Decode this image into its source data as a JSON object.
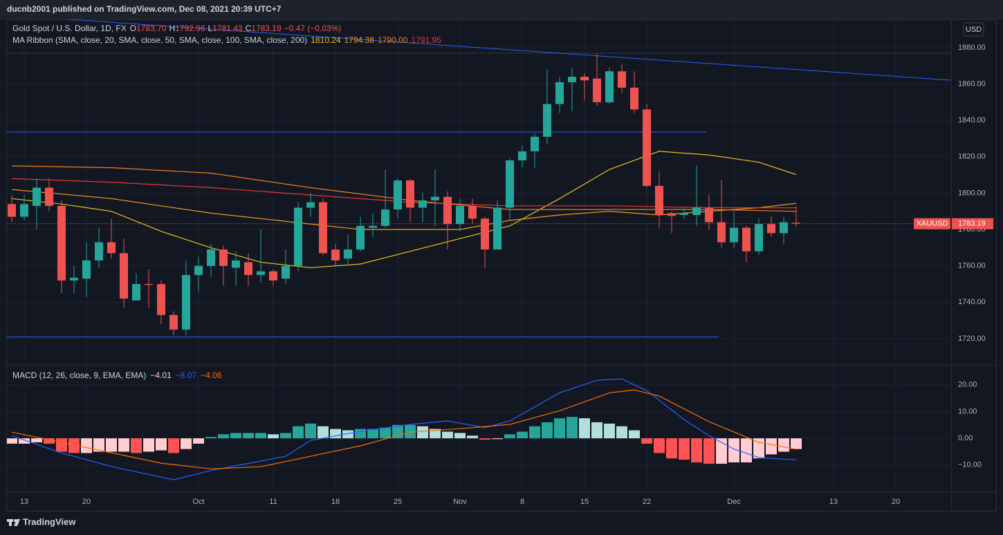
{
  "header": "ducnb2001 published on TradingView.com, Dec 08, 2021 20:39 UTC+7",
  "footer": "TradingView",
  "chart_data": [
    {
      "type": "candlestick",
      "title": "Gold Spot / U.S. Dollar, 1D, FX",
      "ohlc_legend": [
        {
          "key": "O",
          "value": "1783.70"
        },
        {
          "key": "H",
          "value": "1792.96"
        },
        {
          "key": "L",
          "value": "1781.43"
        },
        {
          "key": "C",
          "value": "1783.19"
        }
      ],
      "change": "−0.47 (−0.03%)",
      "currency": "USD",
      "symbol": "XAUUSD",
      "last_price_label": "1783.19",
      "up_color": "#26a69a",
      "down_color": "#ef5350",
      "categories": [
        null,
        "13",
        null,
        null,
        null,
        null,
        "20",
        null,
        null,
        null,
        null,
        null,
        null,
        null,
        null,
        "Oct",
        null,
        null,
        null,
        null,
        null,
        "11",
        null,
        null,
        null,
        null,
        "18",
        null,
        null,
        null,
        null,
        "25",
        null,
        null,
        null,
        null,
        "Nov",
        null,
        null,
        null,
        null,
        "8",
        null,
        null,
        null,
        null,
        "15",
        null,
        null,
        null,
        null,
        "22",
        null,
        null,
        null,
        null,
        null,
        null,
        "Dec",
        null,
        null,
        null,
        null,
        null,
        null,
        null,
        "13",
        null,
        null,
        null,
        null,
        "20"
      ],
      "open": [
        1794,
        1787,
        1793,
        1803,
        1793,
        1752,
        1753,
        1763,
        1773,
        1767,
        1741,
        1750,
        1750,
        1733,
        1725,
        1755,
        1760,
        1769,
        1759,
        1762,
        1755,
        1757,
        1753,
        1760,
        1792,
        1795,
        1769,
        1764,
        1769,
        1781,
        1782,
        1791,
        1807,
        1792,
        1796,
        1798,
        1783,
        1793,
        1786,
        1769,
        1792,
        1818,
        1823,
        1831,
        1849,
        1861,
        1864,
        1863,
        1850,
        1867,
        1858,
        1846,
        1804,
        1789,
        1788,
        1788,
        1792,
        1784,
        1773,
        1781,
        1768,
        1783,
        1778,
        1783.7,
        null,
        null,
        null,
        null,
        null,
        null,
        null,
        null
      ],
      "high": [
        1799,
        1799,
        1808,
        1808,
        1796,
        1760,
        1773,
        1781,
        1786,
        1775,
        1756,
        1758,
        1752,
        1735,
        1763,
        1765,
        1772,
        1771,
        1768,
        1767,
        1780,
        1758,
        1769,
        1795,
        1800,
        1797,
        1772,
        1777,
        1787,
        1789,
        1813,
        1808,
        1808,
        1800,
        1813,
        1801,
        1797,
        1797,
        1787,
        1796,
        1819,
        1826,
        1833,
        1868,
        1864,
        1869,
        1866,
        1877,
        1869,
        1871,
        1867,
        1849,
        1812,
        1790,
        1792,
        1815,
        1799,
        1807,
        1790,
        1782,
        1786,
        1787,
        1787,
        1792.96,
        null,
        null,
        null,
        null,
        null,
        null,
        null,
        null
      ],
      "low": [
        1784,
        1785,
        1780,
        1790,
        1745,
        1745,
        1743,
        1759,
        1764,
        1737,
        1741,
        1737,
        1728,
        1722,
        1722,
        1746,
        1754,
        1749,
        1749,
        1749,
        1751,
        1749,
        1750,
        1757,
        1787,
        1766,
        1760,
        1761,
        1768,
        1776,
        1781,
        1786,
        1784,
        1784,
        1782,
        1769,
        1779,
        1783,
        1759,
        1769,
        1785,
        1814,
        1814,
        1827,
        1844,
        1845,
        1851,
        1848,
        1849,
        1855,
        1844,
        1803,
        1781,
        1778,
        1786,
        1782,
        1780,
        1770,
        1770,
        1762,
        1766,
        1776,
        1772,
        1781.43,
        null,
        null,
        null,
        null,
        null,
        null,
        null,
        null
      ],
      "close": [
        1787,
        1794,
        1803,
        1793,
        1752,
        1753.5,
        1763,
        1773,
        1767,
        1742,
        1750,
        1749.5,
        1733,
        1725,
        1755,
        1760,
        1769,
        1760,
        1763,
        1755,
        1757,
        1752,
        1760,
        1792,
        1795,
        1767,
        1763,
        1769,
        1782,
        1782,
        1791,
        1807,
        1792,
        1796,
        1798,
        1783,
        1793,
        1786,
        1769,
        1792,
        1818,
        1823,
        1831,
        1849,
        1861,
        1864,
        1862,
        1850,
        1867,
        1858,
        1846,
        1804,
        1788,
        1787.5,
        1789,
        1792,
        1784,
        1773,
        1781,
        1768,
        1783,
        1778,
        1784,
        1783.19,
        null,
        null,
        null,
        null,
        null,
        null,
        null,
        null
      ],
      "indicator": "MA Ribbon (SMA, close, 20, SMA, close, 50, SMA, close, 100, SMA, close, 200)",
      "series": [
        {
          "color": "#e8c21c",
          "legend_value": "1810.24",
          "x": [
            0,
            4,
            8,
            12,
            16,
            20,
            24,
            28,
            32,
            36,
            40,
            44,
            48,
            52,
            56,
            60,
            63
          ],
          "values": [
            1797,
            1794,
            1790,
            1779,
            1770,
            1762,
            1759,
            1761,
            1768,
            1775,
            1782,
            1797,
            1813,
            1823,
            1821,
            1817,
            1810.24
          ]
        },
        {
          "color": "#f59f1d",
          "legend_value": "1794.38",
          "x": [
            0,
            8,
            16,
            24,
            28,
            36,
            40,
            44,
            48,
            52,
            56,
            60,
            63
          ],
          "values": [
            1802,
            1797,
            1789,
            1783,
            1780,
            1780,
            1785,
            1788,
            1790,
            1788,
            1790,
            1792,
            1794.38
          ]
        },
        {
          "color": "#ef7f1a",
          "legend_value": "1790.00",
          "x": [
            0,
            8,
            16,
            24,
            32,
            40,
            48,
            56,
            63
          ],
          "values": [
            1815,
            1814,
            1811,
            1803,
            1796,
            1791,
            1791,
            1791,
            1790
          ]
        },
        {
          "color": "#e53935",
          "legend_value": "1791.95",
          "x": [
            0,
            8,
            16,
            24,
            32,
            40,
            48,
            56,
            63
          ],
          "values": [
            1808,
            1806,
            1803,
            1799,
            1795,
            1793,
            1793,
            1792,
            1791.95
          ]
        }
      ],
      "drawings": [
        {
          "color": "#2962ff",
          "x": [
            -0.4,
            75.4
          ],
          "values": [
            1897.9,
            1862.1
          ]
        },
        {
          "color": "#2962ff",
          "x": [
            -0.4,
            55.8
          ],
          "values": [
            1833.6,
            1833.6
          ]
        },
        {
          "color": "#2962ff",
          "x": [
            -0.4,
            56.8
          ],
          "values": [
            1721,
            1721
          ]
        }
      ],
      "high_level": 1877,
      "ylim": [
        1705.9,
        1898.6
      ],
      "yticks": [
        {
          "value": 1720,
          "label": "1720.00"
        },
        {
          "value": 1740,
          "label": "1740.00"
        },
        {
          "value": 1760,
          "label": "1760.00"
        },
        {
          "value": 1780,
          "label": "1780.00"
        },
        {
          "value": 1800,
          "label": "1800.00"
        },
        {
          "value": 1820,
          "label": "1820.00"
        },
        {
          "value": 1840,
          "label": "1840.00"
        },
        {
          "value": 1860,
          "label": "1860.00"
        },
        {
          "value": 1880,
          "label": "1880.00"
        }
      ],
      "grid": true
    },
    {
      "type": "macd",
      "title": "MACD (12, 26, close, 9, EMA, EMA)",
      "histogram": {
        "legend_value": "−4.01",
        "colors": {
          "up_rising": "#26a69a",
          "up_falling": "#b2dfdb",
          "down_falling": "#ff5252",
          "down_rising": "#ffcdd2"
        },
        "values": [
          -2,
          -2,
          -1.5,
          -2,
          -5,
          -5.5,
          -5.5,
          -5,
          -5,
          -5,
          -5.5,
          -5,
          -4.5,
          -5.5,
          -4,
          -2,
          0.5,
          1.5,
          2,
          2,
          2,
          1.5,
          2,
          4.5,
          5.5,
          4.5,
          3.5,
          3,
          3.5,
          3.5,
          4,
          5,
          5,
          4.5,
          3.5,
          2.5,
          2,
          1,
          -0.5,
          -0.3,
          1.5,
          2.5,
          4.5,
          6,
          7.5,
          8,
          7.5,
          6,
          5.5,
          4.5,
          3,
          -2,
          -5.5,
          -7.5,
          -8,
          -9,
          -9.5,
          -9.5,
          -9,
          -9,
          -7.5,
          -6,
          -5,
          -4.01,
          null,
          null,
          null,
          null,
          null,
          null,
          null,
          null
        ]
      },
      "series": [
        {
          "color": "#2962ff",
          "legend_value": "−8.07",
          "x": [
            0,
            4,
            8,
            12,
            13,
            16,
            20,
            22,
            24,
            28,
            32,
            35,
            38,
            40,
            44,
            47,
            49,
            51,
            54,
            56,
            58,
            60,
            63
          ],
          "values": [
            1,
            -5.5,
            -10.5,
            -14.5,
            -15.5,
            -12,
            -8.5,
            -6.7,
            -0.8,
            2.6,
            5.2,
            6.5,
            4,
            6.5,
            17,
            21.7,
            22.2,
            17.8,
            7,
            1,
            -4,
            -7.2,
            -8.07
          ]
        },
        {
          "color": "#ff6d00",
          "legend_value": "−4.06",
          "x": [
            0,
            4,
            8,
            12,
            16,
            20,
            24,
            28,
            32,
            36,
            40,
            44,
            48,
            50,
            52,
            56,
            60,
            63
          ],
          "values": [
            2.3,
            -1.5,
            -5.4,
            -9.3,
            -11.4,
            -10.6,
            -6.7,
            -2.8,
            2.3,
            3.6,
            5.2,
            10.3,
            17,
            18.1,
            15.8,
            6.2,
            -1.5,
            -4.06
          ]
        }
      ],
      "ylim": [
        -19.6,
        26.9
      ],
      "yticks": [
        {
          "value": -10,
          "label": "−10.00"
        },
        {
          "value": 0,
          "label": "0.00"
        },
        {
          "value": 10,
          "label": "10.00"
        },
        {
          "value": 20,
          "label": "20.00"
        }
      ],
      "grid": true
    }
  ]
}
